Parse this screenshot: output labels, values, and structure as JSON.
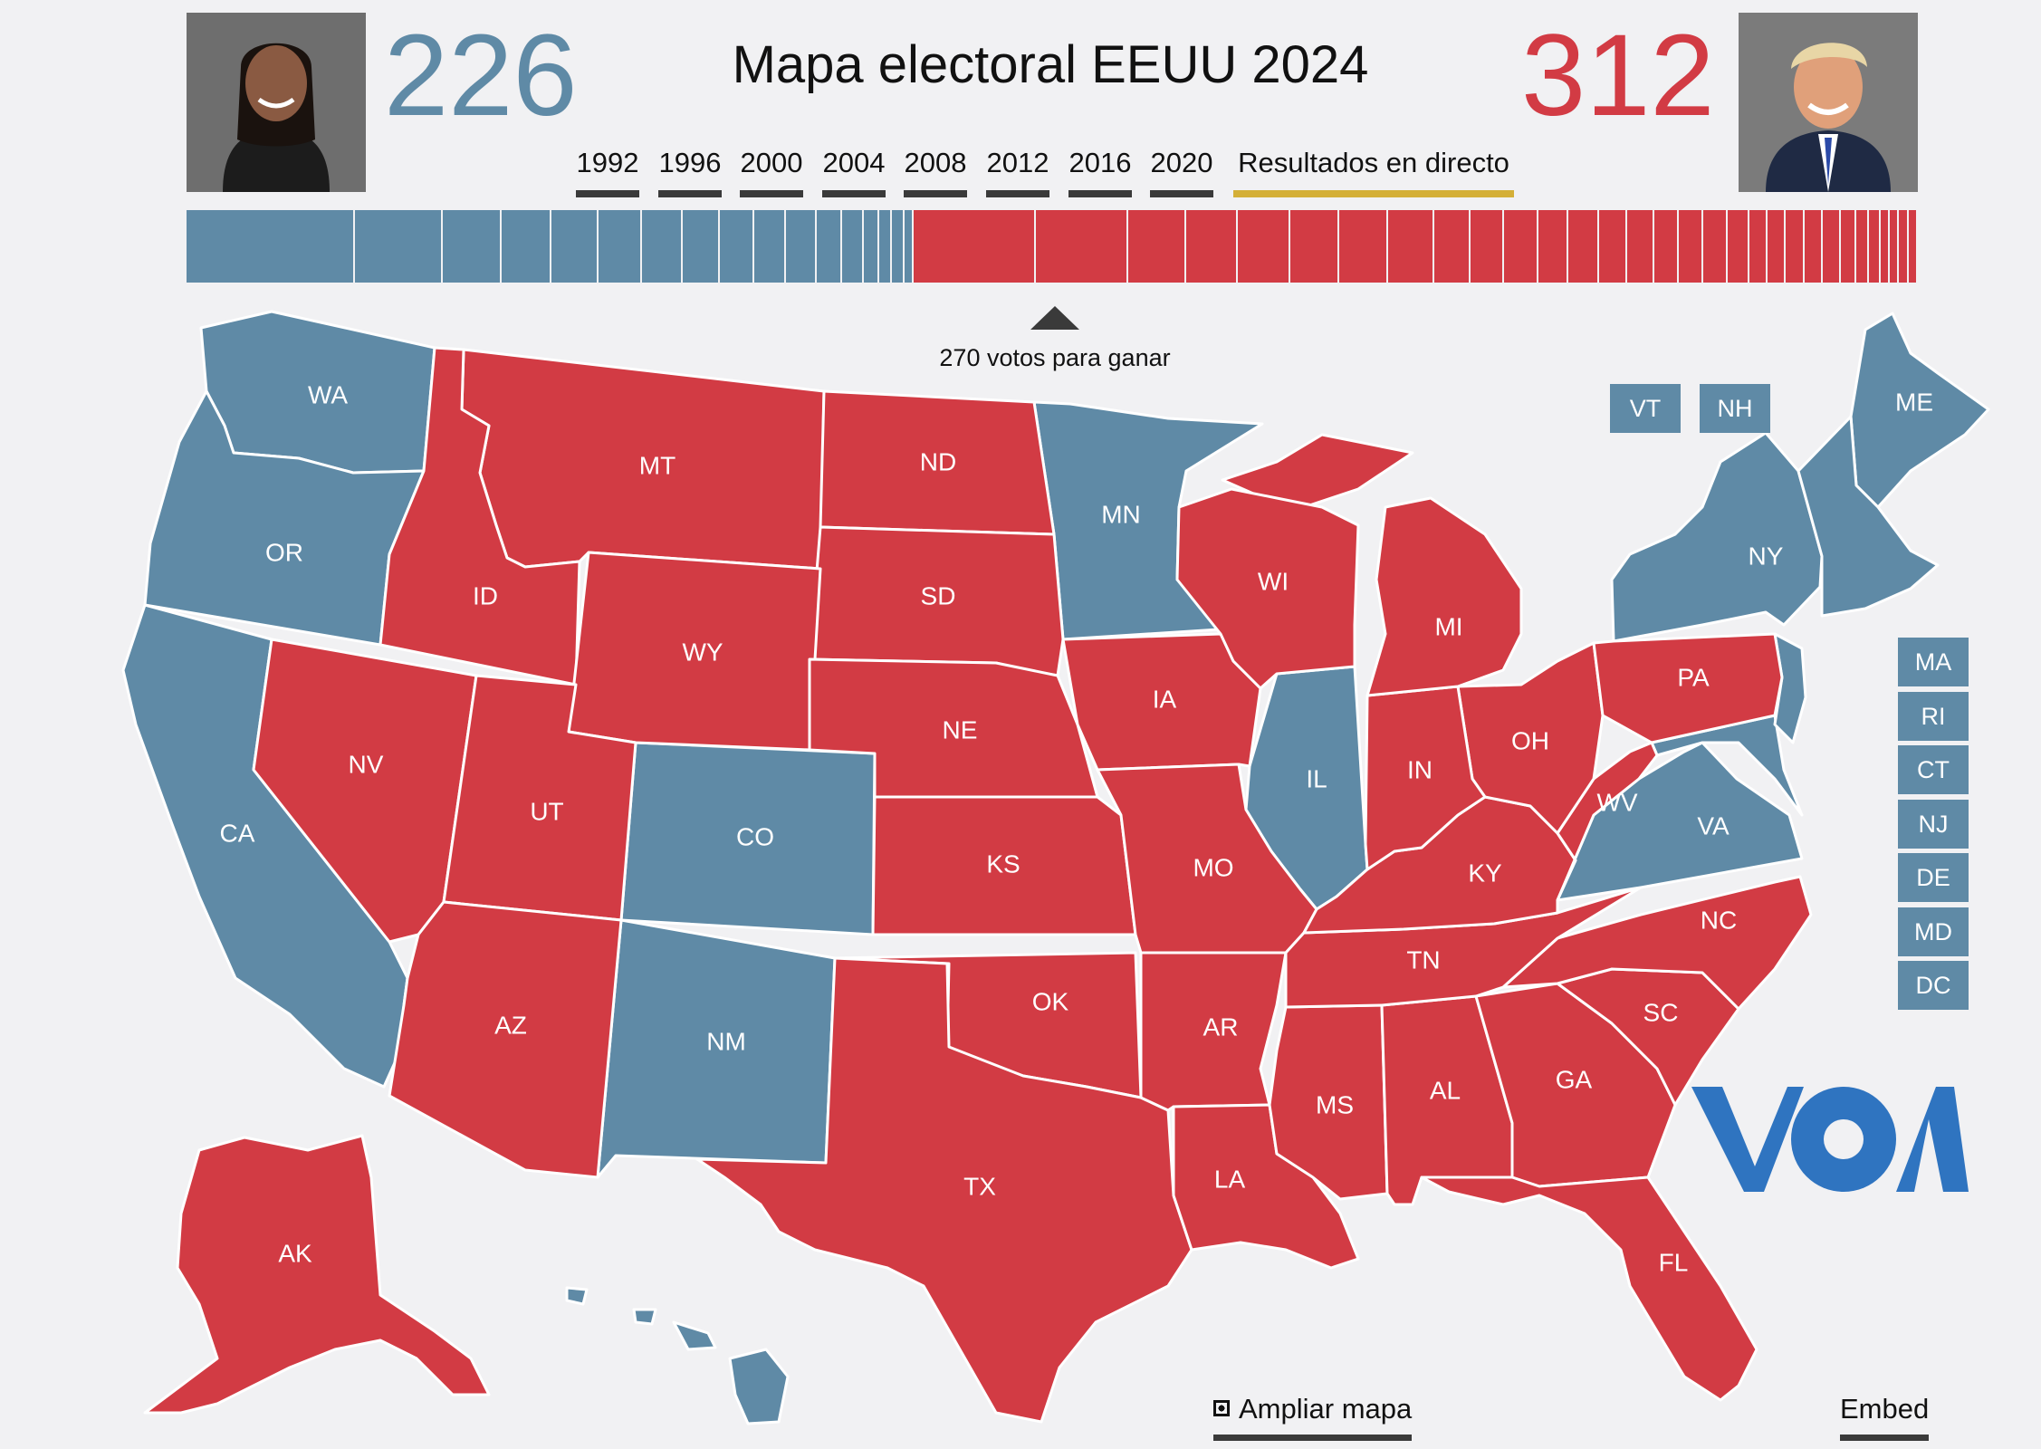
{
  "header": {
    "title": "Mapa electoral EEUU 2024",
    "dem_votes": "226",
    "rep_votes": "312"
  },
  "years": [
    "1992",
    "1996",
    "2000",
    "2004",
    "2008",
    "2012",
    "2016",
    "2020"
  ],
  "live_label": "Resultados en directo",
  "goal_label": "270 votos para ganar",
  "colors": {
    "dem": "#5f8aa6",
    "rep": "#d23b44",
    "live_underline": "#d4af37"
  },
  "small_states": {
    "top": [
      "VT",
      "NH"
    ],
    "side": [
      "MA",
      "RI",
      "CT",
      "NJ",
      "DE",
      "MD",
      "DC"
    ]
  },
  "map_states": {
    "dem": [
      "WA",
      "OR",
      "CA",
      "CO",
      "NM",
      "MN",
      "IL",
      "NY",
      "ME",
      "VA",
      "HI"
    ],
    "rep": [
      "MT",
      "ID",
      "ND",
      "SD",
      "WY",
      "NE",
      "NV",
      "UT",
      "KS",
      "AZ",
      "OK",
      "TX",
      "IA",
      "MO",
      "AR",
      "LA",
      "MS",
      "AL",
      "GA",
      "FL",
      "SC",
      "NC",
      "TN",
      "KY",
      "WV",
      "OH",
      "IN",
      "MI",
      "WI",
      "PA",
      "AK"
    ]
  },
  "footer": {
    "ampliar": "Ampliar mapa",
    "embed": "Embed"
  },
  "logo": "VOA"
}
